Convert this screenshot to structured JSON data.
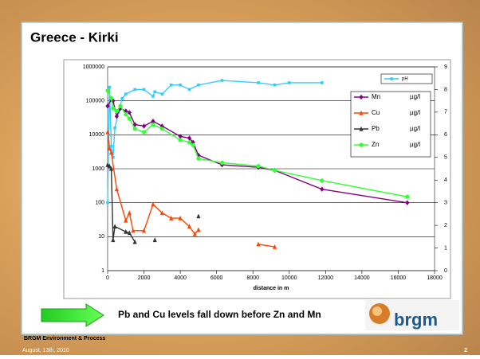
{
  "slide": {
    "title": "Greece - Kirki",
    "callout": "Pb and Cu levels fall down before Zn and Mn",
    "footer": "BRGM Environment & Process",
    "date": "August, 13th, 2010",
    "page": "2",
    "logo": "brgm"
  },
  "chart_data": {
    "type": "line",
    "xlabel": "distance in m",
    "yscale": "log",
    "xlim": [
      0,
      18000
    ],
    "xticks": [
      0,
      2000,
      4000,
      6000,
      8000,
      10000,
      12000,
      14000,
      16000,
      18000
    ],
    "ylim": [
      1,
      1000000
    ],
    "yticks": [
      1,
      10,
      100,
      1000,
      10000,
      100000,
      1000000
    ],
    "y2lim": [
      0,
      9
    ],
    "y2ticks": [
      0,
      1,
      2,
      3,
      4,
      5,
      6,
      7,
      8,
      9
    ],
    "grid": true,
    "series": [
      {
        "name": "pH",
        "color": "#33ccff",
        "marker": "square",
        "axis": "y2",
        "x": [
          0,
          100,
          200,
          300,
          400,
          600,
          800,
          1000,
          1500,
          2000,
          2500,
          2600,
          3000,
          3500,
          4000,
          4500,
          5000,
          6300,
          8300,
          9200,
          10000,
          11800
        ],
        "values": [
          3.0,
          8.1,
          5.5,
          5.0,
          6.3,
          7.0,
          7.6,
          7.8,
          8.0,
          8.0,
          7.7,
          7.9,
          7.8,
          8.2,
          8.2,
          8.0,
          8.2,
          8.4,
          8.3,
          8.2,
          8.3,
          8.3
        ]
      },
      {
        "name": "Mn",
        "unit": "µg/l",
        "color": "#800080",
        "marker": "diamond",
        "x": [
          0,
          200,
          300,
          500,
          700,
          1000,
          1200,
          1500,
          2000,
          2500,
          3000,
          4000,
          4500,
          4700,
          5000,
          6300,
          8300,
          9200,
          11800,
          16500
        ],
        "values": [
          70000,
          110000,
          100000,
          35000,
          60000,
          50000,
          45000,
          20000,
          18000,
          25000,
          18000,
          9000,
          8000,
          6000,
          2500,
          1300,
          1100,
          900,
          250,
          100
        ]
      },
      {
        "name": "Cu",
        "unit": "µg/l",
        "color": "#ff4400",
        "marker": "triangle",
        "x": [
          0,
          100,
          200,
          500,
          1000,
          1200,
          1400,
          2000,
          2500,
          3000,
          3500,
          4000,
          4500,
          4800,
          5000,
          6500,
          8300,
          9200
        ],
        "values": [
          12000,
          4000,
          3000,
          250,
          30,
          50,
          15,
          15,
          90,
          50,
          35,
          35,
          20,
          12,
          16,
          null,
          6,
          5
        ]
      },
      {
        "name": "Pb",
        "unit": "µg/l",
        "color": "#333333",
        "marker": "triangle",
        "x": [
          0,
          100,
          200,
          300,
          400,
          1000,
          1200,
          1500,
          2000,
          2600,
          3800,
          5000
        ],
        "values": [
          1300,
          1200,
          1000,
          8,
          20,
          14,
          13,
          7,
          null,
          8,
          null,
          40
        ]
      },
      {
        "name": "Zn",
        "unit": "µg/l",
        "color": "#33ff33",
        "marker": "circle",
        "x": [
          0,
          200,
          300,
          500,
          700,
          1000,
          1200,
          1500,
          2000,
          2500,
          3000,
          4000,
          4500,
          4700,
          5000,
          6300,
          8300,
          9200,
          11800,
          16500
        ],
        "values": [
          200000,
          120000,
          60000,
          50000,
          70000,
          40000,
          30000,
          15000,
          12000,
          20000,
          15000,
          7000,
          6000,
          5000,
          2000,
          1500,
          1200,
          900,
          450,
          150
        ]
      }
    ]
  }
}
